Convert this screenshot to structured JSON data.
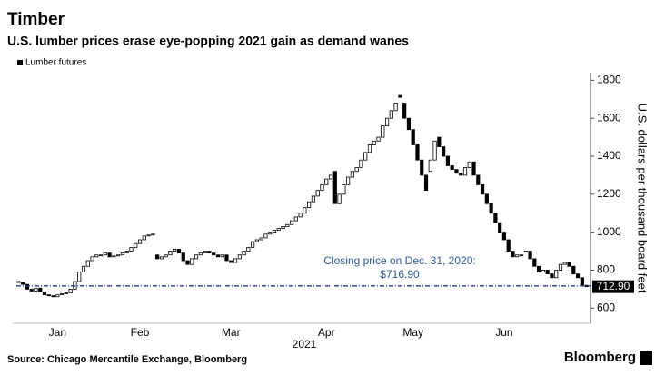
{
  "chart_data": {
    "type": "candlestick",
    "title": "Timber",
    "subtitle": "U.S. lumber prices erase eye-popping 2021 gain as demand wanes",
    "x_label": "2021",
    "y_label": "U.S. dollars per thousand board feet",
    "source": "Source: Chicago Mercantile Exchange, Bloomberg",
    "brand": "Bloomberg",
    "series": [
      {
        "name": "Lumber futures",
        "up_color": "#ffffff",
        "down_color": "#000000",
        "open": [
          740,
          735,
          725,
          700,
          690,
          705,
          685,
          670,
          665,
          660,
          670,
          675,
          680,
          700,
          740,
          790,
          820,
          850,
          870,
          880,
          880,
          890,
          870,
          875,
          880,
          890,
          900,
          920,
          940,
          960,
          980,
          985,
          880,
          860,
          870,
          880,
          900,
          910,
          890,
          850,
          830,
          860,
          880,
          890,
          900,
          890,
          880,
          870,
          880,
          850,
          840,
          860,
          880,
          900,
          920,
          950,
          960,
          970,
          990,
          1000,
          1010,
          1020,
          1030,
          1040,
          1060,
          1080,
          1100,
          1130,
          1160,
          1190,
          1220,
          1250,
          1280,
          1320,
          1150,
          1200,
          1250,
          1290,
          1320,
          1340,
          1380,
          1420,
          1460,
          1480,
          1500,
          1560,
          1600,
          1640,
          1720,
          1680,
          1600,
          1540,
          1460,
          1380,
          1300,
          1320,
          1380,
          1500,
          1450,
          1400,
          1350,
          1330,
          1310,
          1300,
          1340,
          1370,
          1300,
          1250,
          1200,
          1150,
          1100,
          1050,
          1000,
          960,
          900,
          870,
          880,
          900,
          900,
          860,
          820,
          790,
          800,
          780,
          760,
          800,
          830,
          840,
          820,
          780,
          760,
          720
        ],
        "close": [
          735,
          725,
          700,
          690,
          705,
          685,
          670,
          665,
          660,
          670,
          675,
          680,
          700,
          740,
          790,
          820,
          850,
          870,
          880,
          880,
          890,
          870,
          875,
          880,
          890,
          900,
          920,
          940,
          960,
          980,
          985,
          990,
          860,
          870,
          880,
          900,
          910,
          890,
          850,
          830,
          860,
          880,
          890,
          900,
          890,
          880,
          870,
          880,
          850,
          840,
          860,
          880,
          900,
          920,
          950,
          960,
          970,
          990,
          1000,
          1010,
          1020,
          1030,
          1040,
          1060,
          1080,
          1100,
          1130,
          1160,
          1190,
          1220,
          1250,
          1280,
          1300,
          1150,
          1200,
          1250,
          1290,
          1320,
          1340,
          1380,
          1420,
          1460,
          1480,
          1500,
          1560,
          1600,
          1640,
          1680,
          1710,
          1600,
          1540,
          1460,
          1380,
          1300,
          1220,
          1380,
          1480,
          1450,
          1400,
          1350,
          1330,
          1310,
          1300,
          1340,
          1370,
          1300,
          1250,
          1200,
          1150,
          1100,
          1050,
          1000,
          960,
          900,
          870,
          880,
          880,
          900,
          860,
          820,
          790,
          800,
          780,
          760,
          800,
          830,
          840,
          820,
          780,
          760,
          720,
          712.9
        ]
      }
    ],
    "xticks": [
      {
        "value": 9,
        "label": "Jan"
      },
      {
        "value": 28,
        "label": "Feb"
      },
      {
        "value": 49,
        "label": "Mar"
      },
      {
        "value": 71,
        "label": "Apr"
      },
      {
        "value": 91,
        "label": "May"
      },
      {
        "value": 112,
        "label": "Jun"
      }
    ],
    "ylim": [
      520,
      1840
    ],
    "yticks": [
      600,
      800,
      1000,
      1200,
      1400,
      1600,
      1800
    ],
    "reference_line": {
      "value": 716.9,
      "label": "Closing price on Dec. 31, 2020:",
      "value_label": "$716.90",
      "color": "#1f3f8f"
    },
    "last_price": {
      "value": 712.9,
      "label": "712.90"
    }
  }
}
